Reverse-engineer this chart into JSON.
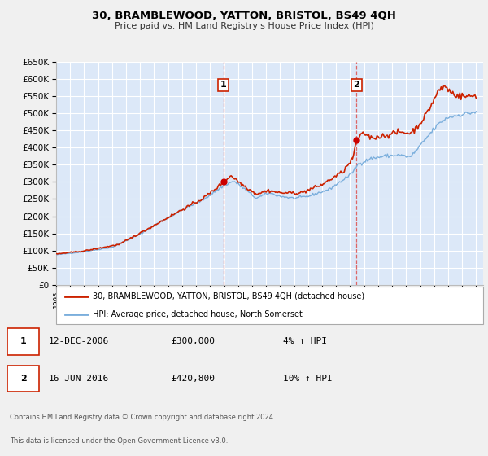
{
  "title": "30, BRAMBLEWOOD, YATTON, BRISTOL, BS49 4QH",
  "subtitle": "Price paid vs. HM Land Registry's House Price Index (HPI)",
  "ylim": [
    0,
    650000
  ],
  "yticks": [
    0,
    50000,
    100000,
    150000,
    200000,
    250000,
    300000,
    350000,
    400000,
    450000,
    500000,
    550000,
    600000,
    650000
  ],
  "xlim_start": 1995.0,
  "xlim_end": 2025.5,
  "fig_bg_color": "#f0f0f0",
  "plot_bg_color": "#dce8f8",
  "grid_color": "#ffffff",
  "hpi_line_color": "#7aaedc",
  "price_line_color": "#cc2200",
  "marker_color": "#cc0000",
  "vline_color": "#dd6666",
  "sale1_date": 2006.95,
  "sale1_price": 300000,
  "sale2_date": 2016.45,
  "sale2_price": 420800,
  "legend_price_label": "30, BRAMBLEWOOD, YATTON, BRISTOL, BS49 4QH (detached house)",
  "legend_hpi_label": "HPI: Average price, detached house, North Somerset",
  "annotation1_num": "1",
  "annotation1_date": "12-DEC-2006",
  "annotation1_price": "£300,000",
  "annotation1_hpi": "4% ↑ HPI",
  "annotation2_num": "2",
  "annotation2_date": "16-JUN-2016",
  "annotation2_price": "£420,800",
  "annotation2_hpi": "10% ↑ HPI",
  "footer1": "Contains HM Land Registry data © Crown copyright and database right 2024.",
  "footer2": "This data is licensed under the Open Government Licence v3.0."
}
